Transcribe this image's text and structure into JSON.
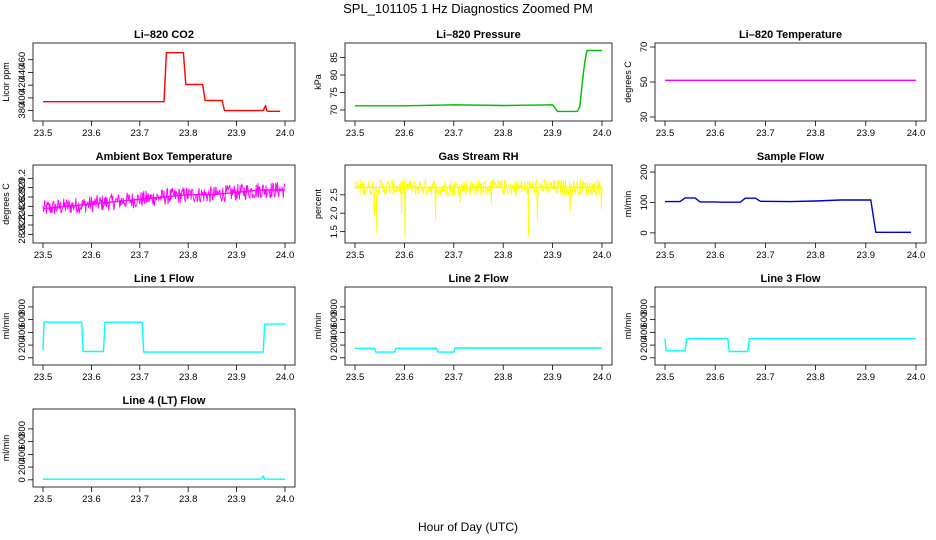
{
  "page": {
    "title": "SPL_101105  1 Hz Diagnostics Zoomed PM",
    "xlabel": "Hour of Day (UTC)"
  },
  "chart_data": [
    {
      "type": "line",
      "title": "Li–820 CO2",
      "ylabel": "Licor ppm",
      "color": "#ff0000",
      "xlim": [
        23.5,
        24.0
      ],
      "ylim": [
        370,
        480
      ],
      "xticks": [
        "23.5",
        "23.6",
        "23.7",
        "23.8",
        "23.9",
        "24.0"
      ],
      "yticks": [
        "380",
        "400",
        "420",
        "440",
        "460"
      ],
      "x": [
        23.5,
        23.75,
        23.755,
        23.79,
        23.795,
        23.83,
        23.835,
        23.87,
        23.875,
        23.955,
        23.96,
        23.962,
        23.965,
        23.99
      ],
      "y": [
        394,
        394,
        471,
        471,
        421,
        421,
        396,
        396,
        380,
        380,
        388,
        380,
        379,
        379
      ]
    },
    {
      "type": "line",
      "title": "Li–820 Pressure",
      "ylabel": "kPa",
      "color": "#00bb00",
      "xlim": [
        23.5,
        24.0
      ],
      "ylim": [
        68,
        88
      ],
      "xticks": [
        "23.5",
        "23.6",
        "23.7",
        "23.8",
        "23.9",
        "24.0"
      ],
      "yticks": [
        "70",
        "75",
        "80",
        "85"
      ],
      "x": [
        23.5,
        23.6,
        23.7,
        23.8,
        23.9,
        23.91,
        23.95,
        23.955,
        23.962,
        23.965,
        23.968,
        23.97,
        24.0
      ],
      "y": [
        71.2,
        71.2,
        71.5,
        71.3,
        71.5,
        69.6,
        69.6,
        71.0,
        80.0,
        83.5,
        86.0,
        87.0,
        87.0
      ]
    },
    {
      "type": "line",
      "title": "Li–820 Temperature",
      "ylabel": "degrees C",
      "color": "#ff00ff",
      "xlim": [
        23.5,
        24.0
      ],
      "ylim": [
        30,
        70
      ],
      "xticks": [
        "23.5",
        "23.6",
        "23.7",
        "23.8",
        "23.9",
        "24.0"
      ],
      "yticks": [
        "30",
        "50",
        "70"
      ],
      "x": [
        23.5,
        24.0
      ],
      "y": [
        51,
        51
      ]
    },
    {
      "type": "line",
      "title": "Ambient Box Temperature",
      "ylabel": "degrees C",
      "color": "#ff00ff",
      "xlim": [
        23.5,
        24.0
      ],
      "ylim": [
        27.9,
        29.4
      ],
      "xticks": [
        "23.5",
        "23.6",
        "23.7",
        "23.8",
        "23.9",
        "24.0"
      ],
      "yticks": [
        "28.0",
        "28.2",
        "28.4",
        "28.6",
        "28.8",
        "29.0",
        "29.2"
      ],
      "x": [
        23.5,
        23.55,
        23.6,
        23.65,
        23.7,
        23.75,
        23.8,
        23.85,
        23.9,
        23.95,
        24.0
      ],
      "y": [
        28.55,
        28.6,
        28.65,
        28.7,
        28.75,
        28.8,
        28.85,
        28.85,
        28.9,
        28.95,
        28.95
      ]
    },
    {
      "type": "line",
      "title": "Gas Stream RH",
      "ylabel": "percent",
      "color": "#ffff00",
      "xlim": [
        23.5,
        24.0
      ],
      "ylim": [
        1.3,
        3.2
      ],
      "xticks": [
        "23.5",
        "23.6",
        "23.7",
        "23.8",
        "23.9",
        "24.0"
      ],
      "yticks": [
        "1.5",
        "2.0",
        "2.5"
      ],
      "x": [
        23.5,
        23.6,
        23.7,
        23.8,
        23.9,
        24.0
      ],
      "y": [
        2.7,
        2.7,
        2.7,
        2.7,
        2.7,
        2.7
      ]
    },
    {
      "type": "line",
      "title": "Sample Flow",
      "ylabel": "ml/min",
      "color": "#0000cc",
      "xlim": [
        23.5,
        24.0
      ],
      "ylim": [
        -20,
        210
      ],
      "xticks": [
        "23.5",
        "23.6",
        "23.7",
        "23.8",
        "23.9",
        "24.0"
      ],
      "yticks": [
        "0",
        "100",
        "200"
      ],
      "x": [
        23.5,
        23.53,
        23.54,
        23.56,
        23.57,
        23.6,
        23.61,
        23.65,
        23.66,
        23.68,
        23.69,
        23.75,
        23.8,
        23.85,
        23.9,
        23.91,
        23.92,
        23.99
      ],
      "y": [
        103,
        103,
        115,
        115,
        102,
        102,
        101,
        101,
        114,
        114,
        104,
        103,
        105,
        108,
        108,
        108,
        2,
        2
      ]
    },
    {
      "type": "line",
      "title": "Line 1 Flow",
      "ylabel": "ml/min",
      "color": "#00ffff",
      "xlim": [
        23.5,
        24.0
      ],
      "ylim": [
        -50,
        1050
      ],
      "xticks": [
        "23.5",
        "23.6",
        "23.7",
        "23.8",
        "23.9",
        "24.0"
      ],
      "yticks": [
        "0",
        "200",
        "400",
        "600",
        "800"
      ],
      "x": [
        23.5,
        23.502,
        23.58,
        23.583,
        23.625,
        23.628,
        23.705,
        23.708,
        23.955,
        23.958,
        24.0
      ],
      "y": [
        120,
        560,
        560,
        100,
        100,
        560,
        560,
        90,
        90,
        530,
        530
      ]
    },
    {
      "type": "line",
      "title": "Line 2 Flow",
      "ylabel": "ml/min",
      "color": "#00ffff",
      "xlim": [
        23.5,
        24.0
      ],
      "ylim": [
        -50,
        1050
      ],
      "xticks": [
        "23.5",
        "23.6",
        "23.7",
        "23.8",
        "23.9",
        "24.0"
      ],
      "yticks": [
        "0",
        "200",
        "400",
        "600",
        "800"
      ],
      "x": [
        23.5,
        23.54,
        23.542,
        23.58,
        23.583,
        23.665,
        23.668,
        23.7,
        23.703,
        24.0
      ],
      "y": [
        150,
        150,
        90,
        90,
        150,
        150,
        90,
        90,
        155,
        155
      ]
    },
    {
      "type": "line",
      "title": "Line 3 Flow",
      "ylabel": "ml/min",
      "color": "#00ffff",
      "xlim": [
        23.5,
        24.0
      ],
      "ylim": [
        -50,
        1050
      ],
      "xticks": [
        "23.5",
        "23.6",
        "23.7",
        "23.8",
        "23.9",
        "24.0"
      ],
      "yticks": [
        "0",
        "200",
        "400",
        "600",
        "800"
      ],
      "x": [
        23.5,
        23.502,
        23.54,
        23.543,
        23.625,
        23.628,
        23.665,
        23.668,
        24.0
      ],
      "y": [
        300,
        110,
        110,
        300,
        300,
        100,
        100,
        300,
        300
      ]
    },
    {
      "type": "line",
      "title": "Line 4 (LT) Flow",
      "ylabel": "ml/min",
      "color": "#00ffff",
      "xlim": [
        23.5,
        24.0
      ],
      "ylim": [
        -50,
        1050
      ],
      "xticks": [
        "23.5",
        "23.6",
        "23.7",
        "23.8",
        "23.9",
        "24.0"
      ],
      "yticks": [
        "0",
        "200",
        "400",
        "600",
        "800"
      ],
      "x": [
        23.5,
        23.95,
        23.955,
        23.958,
        23.96,
        24.0
      ],
      "y": [
        10,
        10,
        60,
        10,
        10,
        10
      ]
    }
  ]
}
